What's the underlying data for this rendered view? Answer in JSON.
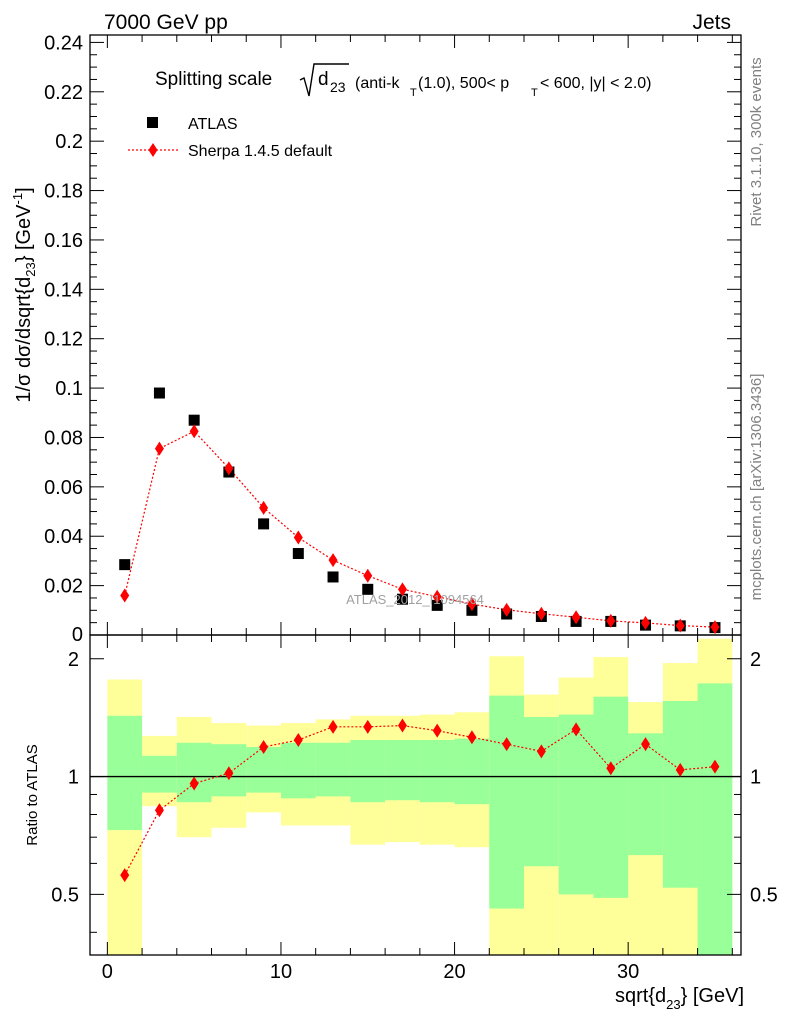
{
  "header": {
    "left": "7000 GeV pp",
    "right": "Jets"
  },
  "side_labels": {
    "rivet": "Rivet 3.1.10,  300k events",
    "mcplots": "mcplots.cern.ch [arXiv:1306.3436]"
  },
  "title": {
    "prefix": "Splitting scale",
    "sqrt_arg": "d",
    "sqrt_sub": "23",
    "rest1": "(anti-k",
    "rest_sub": "T",
    "rest2": "(1.0), 500< p",
    "rest_sub2": "T",
    "rest3": " < 600, |y| < 2.0)"
  },
  "watermark": "ATLAS_2012_I1094564",
  "colors": {
    "data": "#000000",
    "mc": "#ff0000",
    "band_inner": "#99ff99",
    "band_outer": "#ffff99"
  },
  "chart_data": [
    {
      "type": "scatter",
      "panel": "main",
      "ylabel": "1/σ dσ/dsqrt{d_23} [GeV^-1]",
      "xlim": [
        -1,
        36.5
      ],
      "ylim": [
        0,
        0.243
      ],
      "yticks": [
        0.02,
        0.04,
        0.06,
        0.08,
        0.1,
        0.12,
        0.14,
        0.16,
        0.18,
        0.2,
        0.22,
        0.24
      ],
      "ytick_labels": [
        "0.02",
        "0.04",
        "0.06",
        "0.08",
        "0.1",
        "0.12",
        "0.14",
        "0.16",
        "0.18",
        "0.2",
        "0.22",
        "0.24"
      ],
      "ytick_zero_label": "0",
      "legend": {
        "placement": "top-left"
      },
      "series": [
        {
          "name": "ATLAS",
          "marker": "square",
          "x": [
            1,
            3,
            5,
            7,
            9,
            11,
            13,
            15,
            17,
            19,
            21,
            23,
            25,
            27,
            29,
            31,
            33,
            35
          ],
          "y": [
            0.0285,
            0.098,
            0.087,
            0.066,
            0.045,
            0.033,
            0.0235,
            0.0185,
            0.0145,
            0.012,
            0.01,
            0.0085,
            0.0075,
            0.0055,
            0.0055,
            0.004,
            0.0037,
            0.003
          ]
        },
        {
          "name": "Sherpa 1.4.5 default",
          "marker": "diamond",
          "line": "dotted",
          "x": [
            1,
            3,
            5,
            7,
            9,
            11,
            13,
            15,
            17,
            19,
            21,
            23,
            25,
            27,
            29,
            31,
            33,
            35
          ],
          "y": [
            0.016,
            0.0755,
            0.0825,
            0.0675,
            0.0515,
            0.0395,
            0.0303,
            0.024,
            0.0185,
            0.0155,
            0.0125,
            0.0102,
            0.0086,
            0.0072,
            0.0057,
            0.0049,
            0.0038,
            0.0032
          ]
        }
      ]
    },
    {
      "type": "scatter",
      "panel": "ratio",
      "xlabel": "sqrt{d_23} [GeV]",
      "ylabel": "Ratio to ATLAS",
      "xlim": [
        -1,
        36.5
      ],
      "ylim": [
        0.35,
        2.3
      ],
      "xticks": [
        0,
        10,
        20,
        30
      ],
      "xtick_labels": [
        "0",
        "10",
        "20",
        "30"
      ],
      "yticks": [
        0.5,
        1,
        2
      ],
      "ytick_labels": [
        "0.5",
        "1",
        "2"
      ],
      "bins": [
        [
          0,
          2
        ],
        [
          2,
          4
        ],
        [
          4,
          6
        ],
        [
          6,
          8
        ],
        [
          8,
          10
        ],
        [
          10,
          12
        ],
        [
          12,
          14
        ],
        [
          14,
          16
        ],
        [
          16,
          18
        ],
        [
          18,
          20
        ],
        [
          20,
          22
        ],
        [
          22,
          24
        ],
        [
          24,
          26
        ],
        [
          26,
          28
        ],
        [
          28,
          30
        ],
        [
          30,
          32
        ],
        [
          32,
          34
        ],
        [
          34,
          36
        ]
      ],
      "inner_band": [
        [
          0.73,
          1.43
        ],
        [
          0.91,
          1.13
        ],
        [
          0.86,
          1.22
        ],
        [
          0.89,
          1.21
        ],
        [
          0.91,
          1.19
        ],
        [
          0.88,
          1.22
        ],
        [
          0.89,
          1.22
        ],
        [
          0.86,
          1.24
        ],
        [
          0.87,
          1.24
        ],
        [
          0.86,
          1.24
        ],
        [
          0.85,
          1.25
        ],
        [
          0.46,
          1.61
        ],
        [
          0.59,
          1.42
        ],
        [
          0.5,
          1.44
        ],
        [
          0.49,
          1.6
        ],
        [
          0.63,
          1.29
        ],
        [
          0.52,
          1.56
        ],
        [
          0.35,
          1.73
        ]
      ],
      "outer_band": [
        [
          0.35,
          1.77
        ],
        [
          0.84,
          1.27
        ],
        [
          0.7,
          1.42
        ],
        [
          0.74,
          1.37
        ],
        [
          0.81,
          1.35
        ],
        [
          0.75,
          1.37
        ],
        [
          0.75,
          1.4
        ],
        [
          0.67,
          1.43
        ],
        [
          0.68,
          1.43
        ],
        [
          0.67,
          1.44
        ],
        [
          0.66,
          1.46
        ],
        [
          0.35,
          2.03
        ],
        [
          0.35,
          1.62
        ],
        [
          0.35,
          1.79
        ],
        [
          0.35,
          2.02
        ],
        [
          0.35,
          1.55
        ],
        [
          0.35,
          1.95
        ],
        [
          0.35,
          2.25
        ]
      ],
      "series": [
        {
          "name": "Sherpa 1.4.5 default",
          "marker": "diamond",
          "x": [
            1,
            3,
            5,
            7,
            9,
            11,
            13,
            15,
            17,
            19,
            21,
            23,
            25,
            27,
            29,
            31,
            33,
            35
          ],
          "y": [
            0.56,
            0.82,
            0.96,
            1.02,
            1.19,
            1.24,
            1.34,
            1.34,
            1.35,
            1.31,
            1.26,
            1.21,
            1.16,
            1.32,
            1.05,
            1.21,
            1.04,
            1.06
          ]
        }
      ]
    }
  ]
}
